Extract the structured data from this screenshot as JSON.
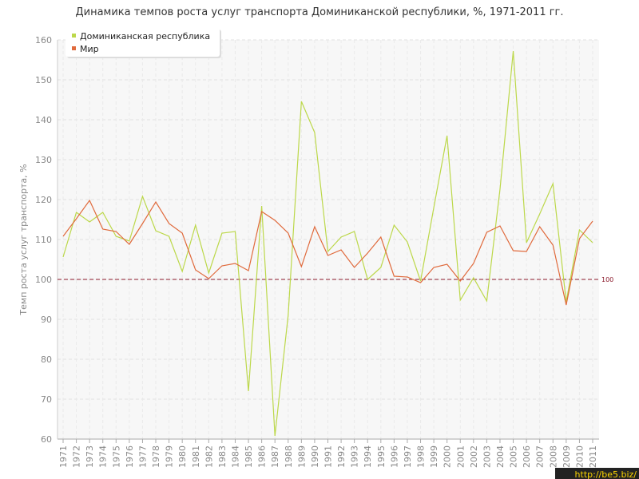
{
  "chart_data": {
    "type": "line",
    "title": "Динамика темпов роста услуг транспорта Доминиканской республики, %, 1971-2011 гг.",
    "y_label": "Темп роста услуг транспорта, %",
    "categories": [
      "1971",
      "1972",
      "1973",
      "1974",
      "1975",
      "1976",
      "1977",
      "1978",
      "1979",
      "1980",
      "1981",
      "1982",
      "1983",
      "1984",
      "1985",
      "1986",
      "1987",
      "1988",
      "1989",
      "1990",
      "1991",
      "1992",
      "1993",
      "1994",
      "1995",
      "1996",
      "1997",
      "1998",
      "1999",
      "2000",
      "2001",
      "2002",
      "2003",
      "2004",
      "2005",
      "2006",
      "2007",
      "2008",
      "2009",
      "2010",
      "2011"
    ],
    "series": [
      {
        "name": "Доминиканская республика",
        "color": "#bcd84a",
        "values": [
          105.6,
          116.8,
          114.4,
          116.8,
          110.8,
          109.6,
          120.8,
          112.2,
          110.8,
          102,
          113.6,
          101.6,
          111.6,
          112,
          72,
          118.4,
          60.8,
          91,
          144.6,
          136.8,
          107,
          110.6,
          112,
          100,
          103,
          113.6,
          109.4,
          99.6,
          118,
          136,
          94.8,
          100.4,
          94.6,
          122.6,
          157.2,
          109.2,
          116.4,
          124,
          94.4,
          112.4,
          109.2
        ]
      },
      {
        "name": "Мир",
        "color": "#e06a3c",
        "values": [
          110.8,
          115.2,
          119.8,
          112.6,
          112,
          108.8,
          114,
          119.4,
          114,
          111.6,
          102.4,
          100.2,
          103.4,
          104,
          102.2,
          117,
          114.8,
          111.6,
          103.2,
          113.2,
          106,
          107.4,
          103,
          106.6,
          110.6,
          100.8,
          100.6,
          99.2,
          103,
          103.8,
          99.6,
          104,
          111.8,
          113.4,
          107.2,
          107,
          113.2,
          108.6,
          93.6,
          110.2,
          114.6
        ]
      }
    ],
    "ylim": [
      60,
      160
    ],
    "yticks": [
      60,
      70,
      80,
      90,
      100,
      110,
      120,
      130,
      140,
      150,
      160
    ],
    "grid": true,
    "legend": "top-left",
    "reference_line": {
      "value": 100,
      "label": "100",
      "color": "#8b1a2b"
    },
    "watermark": "http://be5.biz/"
  }
}
